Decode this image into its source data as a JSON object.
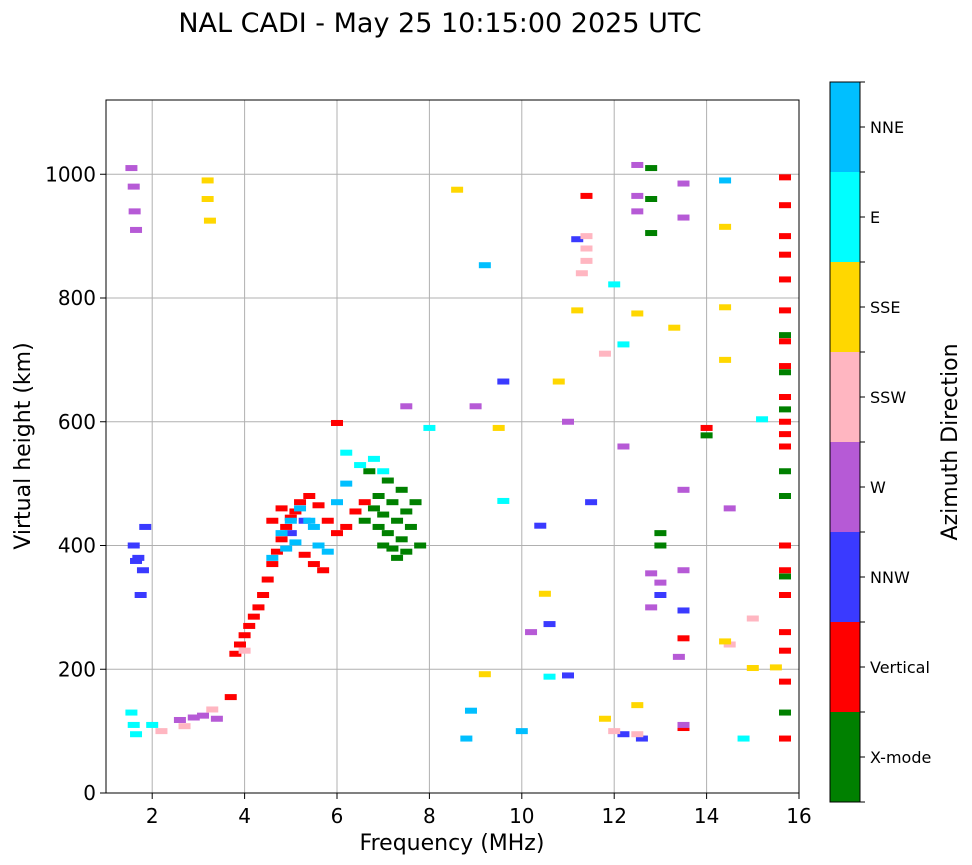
{
  "chart_data": {
    "type": "scatter",
    "title": "NAL CADI - May 25 10:15:00 2025 UTC",
    "xlabel": "Frequency (MHz)",
    "ylabel": "Virtual height (km)",
    "xlim": [
      1,
      16
    ],
    "ylim": [
      0,
      1120
    ],
    "xticks": [
      2,
      4,
      6,
      8,
      10,
      12,
      14,
      16
    ],
    "yticks": [
      0,
      200,
      400,
      600,
      800,
      1000
    ],
    "grid": true,
    "colorbar": {
      "label": "Azimuth Direction",
      "categories": [
        {
          "name": "X-mode",
          "color": "#008000"
        },
        {
          "name": "Vertical",
          "color": "#ff0000"
        },
        {
          "name": "NNW",
          "color": "#3a3aff"
        },
        {
          "name": "W",
          "color": "#b65ad6"
        },
        {
          "name": "SSW",
          "color": "#ffb6c1"
        },
        {
          "name": "SSE",
          "color": "#ffd700"
        },
        {
          "name": "E",
          "color": "#00ffff"
        },
        {
          "name": "NNE",
          "color": "#00bfff"
        }
      ]
    },
    "series": [
      {
        "name": "X-mode",
        "points": [
          [
            6.8,
            460
          ],
          [
            6.9,
            430
          ],
          [
            7.0,
            450
          ],
          [
            7.1,
            420
          ],
          [
            7.2,
            470
          ],
          [
            7.3,
            440
          ],
          [
            7.4,
            410
          ],
          [
            7.5,
            455
          ],
          [
            7.0,
            400
          ],
          [
            7.2,
            395
          ],
          [
            6.9,
            480
          ],
          [
            7.4,
            490
          ],
          [
            7.6,
            430
          ],
          [
            7.7,
            470
          ],
          [
            7.1,
            505
          ],
          [
            6.7,
            520
          ],
          [
            7.5,
            390
          ],
          [
            7.3,
            380
          ],
          [
            6.6,
            440
          ],
          [
            7.8,
            400
          ],
          [
            12.8,
            1010
          ],
          [
            12.8,
            960
          ],
          [
            12.8,
            905
          ],
          [
            13.0,
            400
          ],
          [
            13.0,
            420
          ],
          [
            16.2,
            740
          ],
          [
            16.2,
            680
          ],
          [
            16.2,
            620
          ],
          [
            16.2,
            560
          ],
          [
            16.2,
            520
          ],
          [
            16.2,
            480
          ],
          [
            16.2,
            350
          ],
          [
            16.2,
            130
          ],
          [
            14.0,
            578
          ]
        ]
      },
      {
        "name": "Vertical",
        "points": [
          [
            3.8,
            225
          ],
          [
            3.9,
            240
          ],
          [
            4.0,
            255
          ],
          [
            4.1,
            270
          ],
          [
            4.2,
            285
          ],
          [
            4.3,
            300
          ],
          [
            4.4,
            320
          ],
          [
            4.5,
            345
          ],
          [
            4.6,
            370
          ],
          [
            4.7,
            390
          ],
          [
            4.8,
            410
          ],
          [
            4.9,
            430
          ],
          [
            5.0,
            445
          ],
          [
            5.1,
            455
          ],
          [
            5.2,
            470
          ],
          [
            5.4,
            480
          ],
          [
            5.6,
            465
          ],
          [
            5.8,
            440
          ],
          [
            6.0,
            420
          ],
          [
            6.2,
            430
          ],
          [
            6.4,
            455
          ],
          [
            6.6,
            470
          ],
          [
            5.3,
            385
          ],
          [
            5.5,
            370
          ],
          [
            5.7,
            360
          ],
          [
            4.6,
            440
          ],
          [
            4.8,
            460
          ],
          [
            3.7,
            155
          ],
          [
            16.2,
            995
          ],
          [
            16.2,
            950
          ],
          [
            16.2,
            900
          ],
          [
            16.2,
            870
          ],
          [
            16.2,
            830
          ],
          [
            16.2,
            780
          ],
          [
            16.2,
            730
          ],
          [
            16.2,
            690
          ],
          [
            16.2,
            640
          ],
          [
            16.2,
            600
          ],
          [
            16.2,
            580
          ],
          [
            16.2,
            560
          ],
          [
            16.2,
            400
          ],
          [
            16.2,
            360
          ],
          [
            16.2,
            320
          ],
          [
            16.2,
            260
          ],
          [
            16.2,
            230
          ],
          [
            16.2,
            180
          ],
          [
            16.2,
            88
          ],
          [
            13.5,
            250
          ],
          [
            13.5,
            105
          ],
          [
            11.4,
            965
          ],
          [
            14.0,
            590
          ],
          [
            6.0,
            598
          ]
        ]
      },
      {
        "name": "NNW",
        "points": [
          [
            1.6,
            400
          ],
          [
            1.65,
            375
          ],
          [
            1.7,
            380
          ],
          [
            1.75,
            320
          ],
          [
            1.8,
            360
          ],
          [
            1.85,
            430
          ],
          [
            5.0,
            420
          ],
          [
            5.3,
            440
          ],
          [
            12.6,
            88
          ],
          [
            13.0,
            320
          ],
          [
            13.5,
            295
          ],
          [
            10.6,
            273
          ],
          [
            11.2,
            895
          ],
          [
            9.6,
            665
          ],
          [
            11.5,
            470
          ],
          [
            10.4,
            432
          ],
          [
            11.0,
            190
          ],
          [
            12.2,
            95
          ]
        ]
      },
      {
        "name": "W",
        "points": [
          [
            2.6,
            118
          ],
          [
            2.9,
            122
          ],
          [
            3.1,
            125
          ],
          [
            3.4,
            120
          ],
          [
            1.55,
            1010
          ],
          [
            1.6,
            980
          ],
          [
            1.62,
            940
          ],
          [
            1.65,
            910
          ],
          [
            12.8,
            355
          ],
          [
            12.8,
            300
          ],
          [
            13.0,
            340
          ],
          [
            13.5,
            490
          ],
          [
            13.5,
            360
          ],
          [
            13.5,
            110
          ],
          [
            13.5,
            930
          ],
          [
            13.5,
            985
          ],
          [
            12.5,
            1015
          ],
          [
            12.5,
            965
          ],
          [
            12.5,
            940
          ],
          [
            14.5,
            460
          ],
          [
            7.5,
            625
          ],
          [
            9.0,
            625
          ],
          [
            11.0,
            600
          ],
          [
            12.2,
            560
          ],
          [
            13.4,
            220
          ],
          [
            10.2,
            260
          ]
        ]
      },
      {
        "name": "SSW",
        "points": [
          [
            2.2,
            100
          ],
          [
            2.7,
            108
          ],
          [
            3.3,
            135
          ],
          [
            4.0,
            230
          ],
          [
            11.4,
            880
          ],
          [
            11.4,
            900
          ],
          [
            11.4,
            860
          ],
          [
            11.3,
            840
          ],
          [
            15.0,
            282
          ],
          [
            14.5,
            240
          ],
          [
            12.5,
            95
          ],
          [
            11.8,
            710
          ],
          [
            12.0,
            100
          ]
        ]
      },
      {
        "name": "SSE",
        "points": [
          [
            3.2,
            990
          ],
          [
            3.2,
            960
          ],
          [
            3.25,
            925
          ],
          [
            8.6,
            975
          ],
          [
            9.2,
            192
          ],
          [
            9.5,
            590
          ],
          [
            10.8,
            665
          ],
          [
            11.2,
            780
          ],
          [
            12.5,
            775
          ],
          [
            13.3,
            752
          ],
          [
            14.4,
            785
          ],
          [
            14.4,
            700
          ],
          [
            14.4,
            915
          ],
          [
            15.0,
            202
          ],
          [
            15.5,
            203
          ],
          [
            14.4,
            245
          ],
          [
            11.8,
            120
          ],
          [
            10.5,
            322
          ],
          [
            12.5,
            142
          ]
        ]
      },
      {
        "name": "E",
        "points": [
          [
            1.55,
            130
          ],
          [
            1.6,
            110
          ],
          [
            1.65,
            95
          ],
          [
            2.0,
            110
          ],
          [
            6.2,
            550
          ],
          [
            6.5,
            530
          ],
          [
            6.8,
            540
          ],
          [
            7.0,
            520
          ],
          [
            8.0,
            590
          ],
          [
            12.0,
            822
          ],
          [
            14.8,
            88
          ],
          [
            15.2,
            604
          ],
          [
            12.2,
            725
          ],
          [
            9.6,
            472
          ],
          [
            10.6,
            188
          ]
        ]
      },
      {
        "name": "NNE",
        "points": [
          [
            4.6,
            380
          ],
          [
            4.8,
            420
          ],
          [
            5.0,
            440
          ],
          [
            5.2,
            460
          ],
          [
            5.4,
            440
          ],
          [
            5.5,
            430
          ],
          [
            5.6,
            400
          ],
          [
            5.8,
            390
          ],
          [
            6.0,
            470
          ],
          [
            6.2,
            500
          ],
          [
            4.9,
            395
          ],
          [
            5.1,
            405
          ],
          [
            14.4,
            990
          ],
          [
            9.2,
            853
          ],
          [
            8.9,
            133
          ],
          [
            8.8,
            88
          ],
          [
            10.0,
            100
          ]
        ]
      }
    ]
  }
}
